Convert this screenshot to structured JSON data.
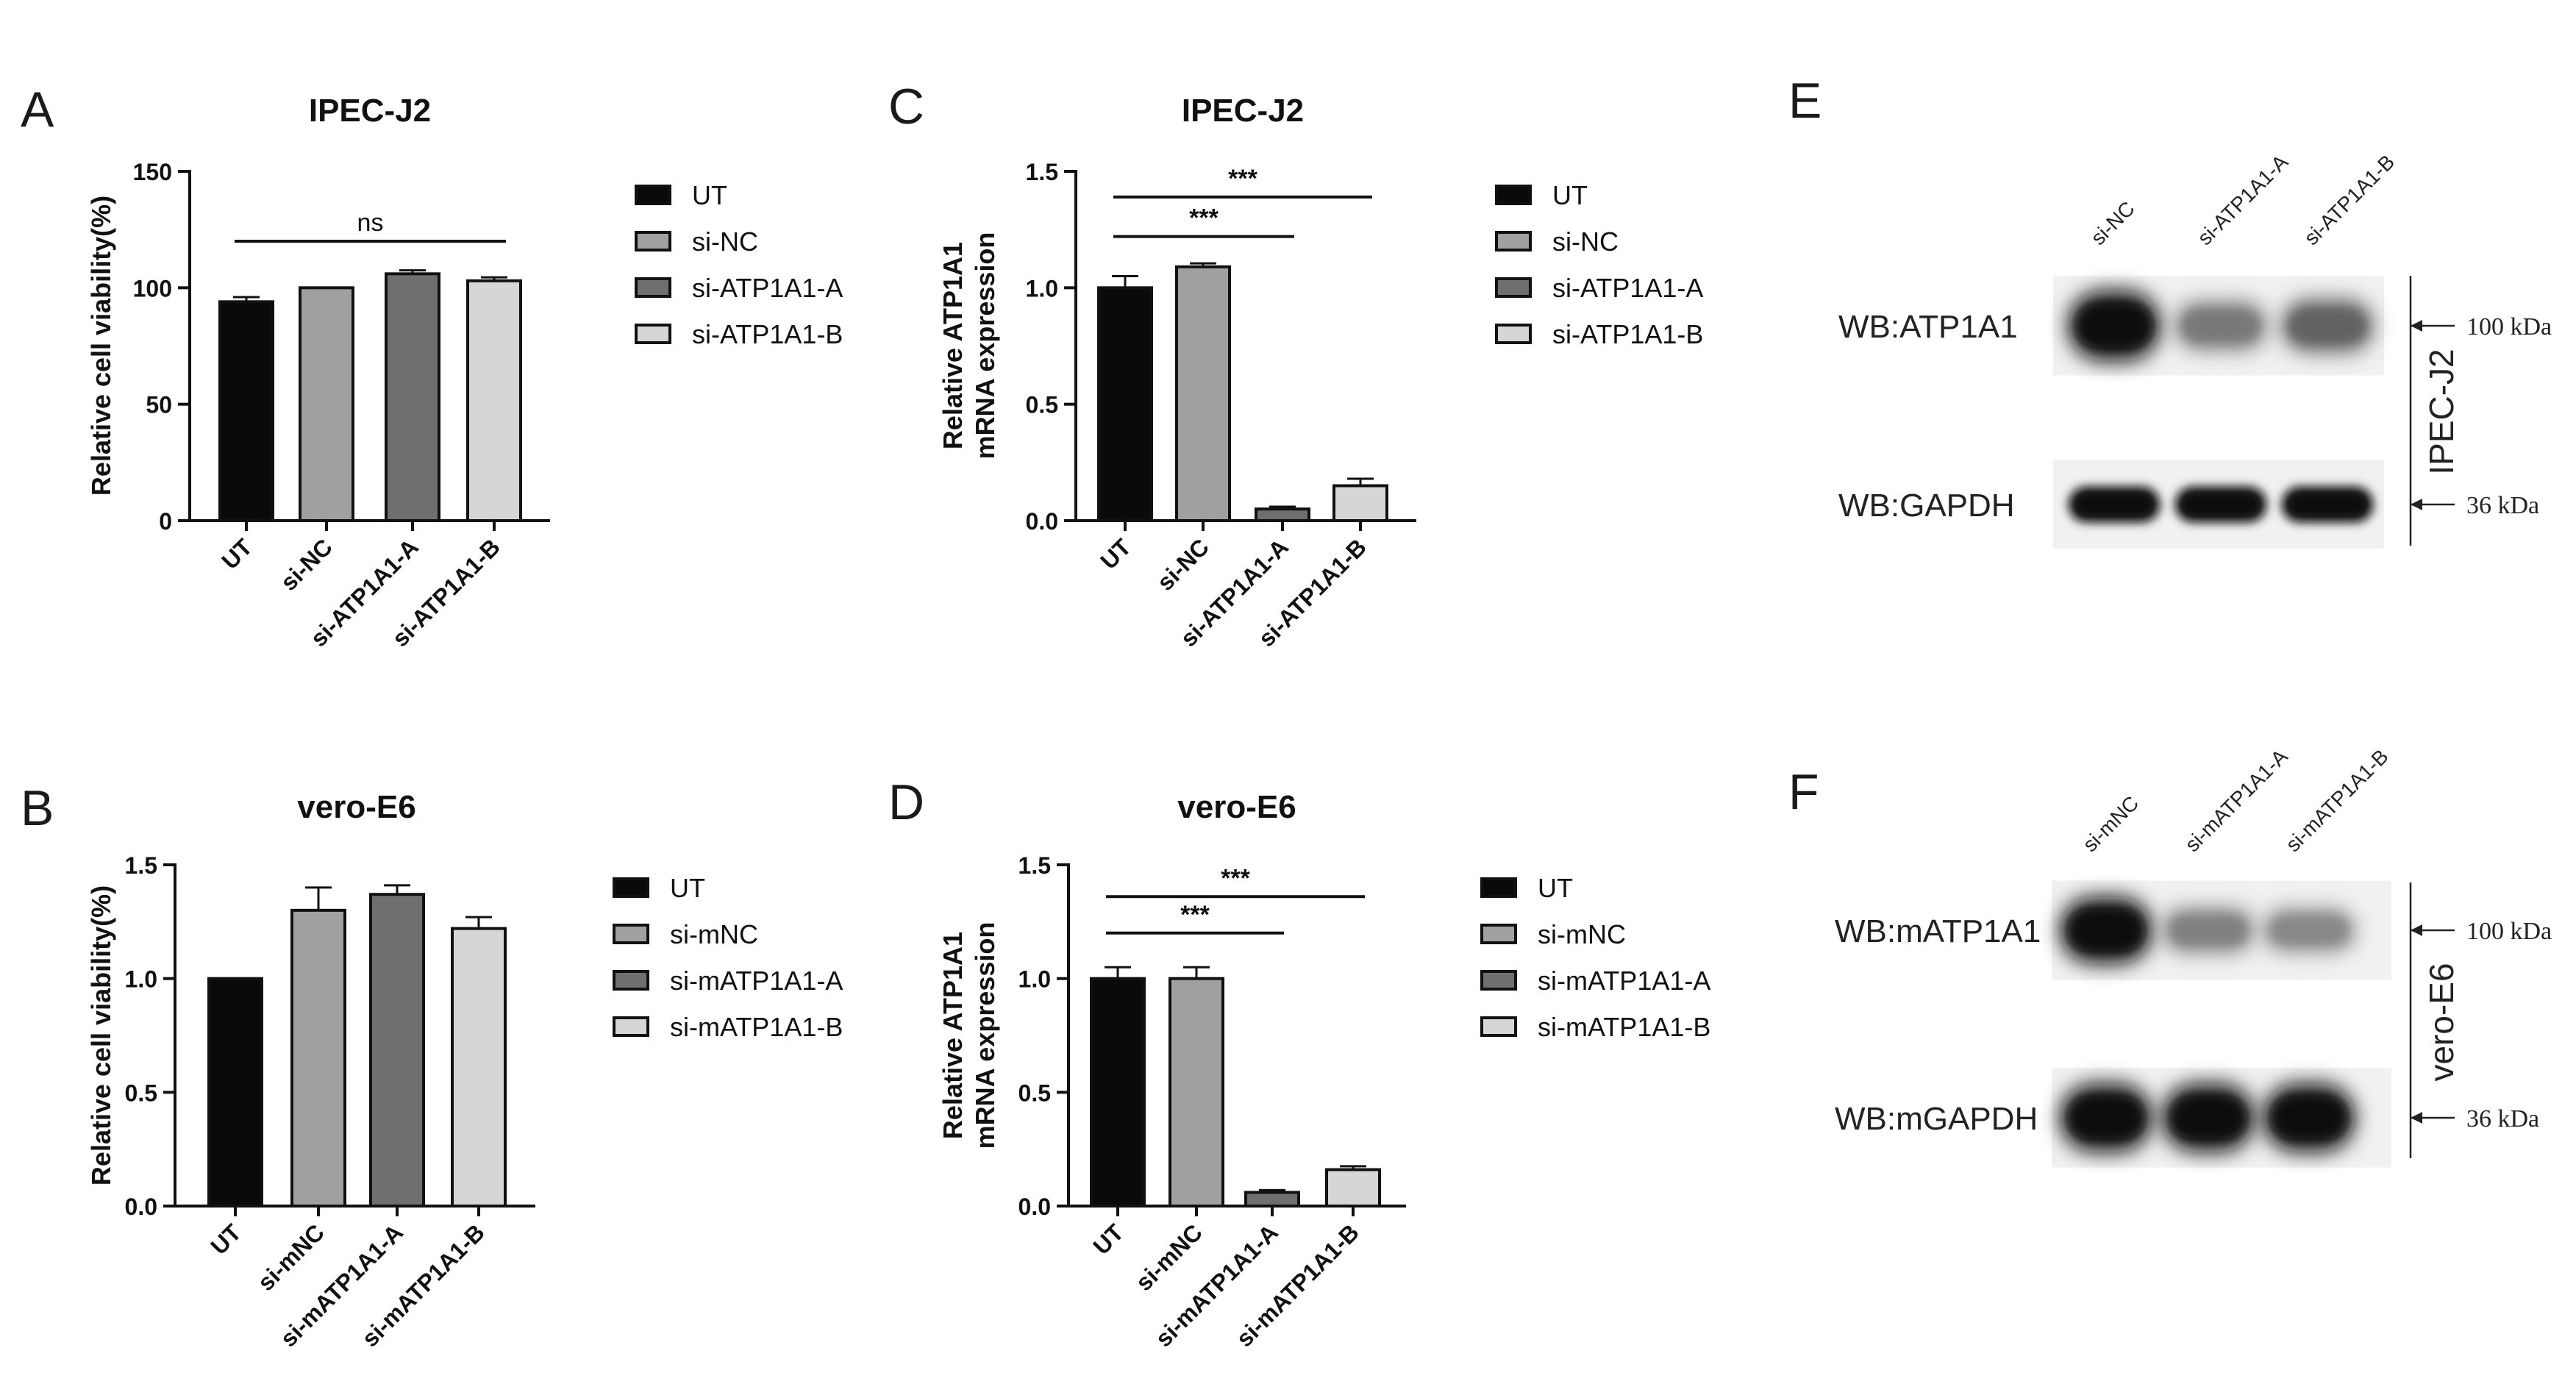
{
  "panels": [
    {
      "letter": "A"
    },
    {
      "letter": "B"
    },
    {
      "letter": "C"
    },
    {
      "letter": "D"
    },
    {
      "letter": "E"
    },
    {
      "letter": "F"
    }
  ],
  "chart_data": [
    {
      "id": "A",
      "type": "bar",
      "title": "IPEC-J2",
      "ylabel": "Relative cell viability(%)",
      "xlabel": "",
      "categories": [
        "UT",
        "si-NC",
        "si-ATP1A1-A",
        "si-ATP1A1-B"
      ],
      "values": [
        94,
        100,
        106,
        103
      ],
      "errors": [
        2,
        0,
        1.5,
        1.5
      ],
      "colors": [
        "#0a0a0a",
        "#a0a0a0",
        "#6f6f6f",
        "#d6d6d6"
      ],
      "ylim": [
        0,
        150
      ],
      "yticks": [
        0,
        50,
        100,
        150
      ],
      "ytick_labels": [
        "0",
        "50",
        "100",
        "150"
      ],
      "legend": [
        "UT",
        "si-NC",
        "si-ATP1A1-A",
        "si-ATP1A1-B"
      ],
      "legend_position": "right",
      "significance": [
        {
          "from": 0,
          "to": 3,
          "label": "ns",
          "level": 120
        }
      ]
    },
    {
      "id": "B",
      "type": "bar",
      "title": "vero-E6",
      "ylabel": "Relative cell viability(%)",
      "xlabel": "",
      "categories": [
        "UT",
        "si-mNC",
        "si-mATP1A1-A",
        "si-mATP1A1-B"
      ],
      "values": [
        1.0,
        1.3,
        1.37,
        1.22
      ],
      "errors": [
        0,
        0.1,
        0.04,
        0.05
      ],
      "colors": [
        "#0a0a0a",
        "#a0a0a0",
        "#6f6f6f",
        "#d6d6d6"
      ],
      "ylim": [
        0,
        1.5
      ],
      "yticks": [
        0,
        0.5,
        1.0,
        1.5
      ],
      "ytick_labels": [
        "0.0",
        "0.5",
        "1.0",
        "1.5"
      ],
      "legend": [
        "UT",
        "si-mNC",
        "si-mATP1A1-A",
        "si-mATP1A1-B"
      ],
      "legend_position": "right",
      "significance": []
    },
    {
      "id": "C",
      "type": "bar",
      "title": "IPEC-J2",
      "ylabel": "Relative ATP1A1 mRNA expression",
      "ylabel_lines": [
        "Relative ATP1A1",
        "mRNA expression"
      ],
      "xlabel": "",
      "categories": [
        "UT",
        "si-NC",
        "si-ATP1A1-A",
        "si-ATP1A1-B"
      ],
      "values": [
        1.0,
        1.09,
        0.05,
        0.15
      ],
      "errors": [
        0.05,
        0.015,
        0.01,
        0.03
      ],
      "colors": [
        "#0a0a0a",
        "#a0a0a0",
        "#6f6f6f",
        "#d6d6d6"
      ],
      "ylim": [
        0,
        1.5
      ],
      "yticks": [
        0,
        0.5,
        1.0,
        1.5
      ],
      "ytick_labels": [
        "0.0",
        "0.5",
        "1.0",
        "1.5"
      ],
      "legend": [
        "UT",
        "si-NC",
        "si-ATP1A1-A",
        "si-ATP1A1-B"
      ],
      "legend_position": "right",
      "significance": [
        {
          "from": 0,
          "to": 2,
          "label": "***",
          "level": 1.22
        },
        {
          "from": 0,
          "to": 3,
          "label": "***",
          "level": 1.39
        }
      ]
    },
    {
      "id": "D",
      "type": "bar",
      "title": "vero-E6",
      "ylabel": "Relative ATP1A1 mRNA expression",
      "ylabel_lines": [
        "Relative ATP1A1",
        "mRNA expression"
      ],
      "xlabel": "",
      "categories": [
        "UT",
        "si-mNC",
        "si-mATP1A1-A",
        "si-mATP1A1-B"
      ],
      "values": [
        1.0,
        1.0,
        0.06,
        0.16
      ],
      "errors": [
        0.05,
        0.05,
        0.01,
        0.015
      ],
      "colors": [
        "#0a0a0a",
        "#a0a0a0",
        "#6f6f6f",
        "#d6d6d6"
      ],
      "ylim": [
        0,
        1.5
      ],
      "yticks": [
        0,
        0.5,
        1.0,
        1.5
      ],
      "ytick_labels": [
        "0.0",
        "0.5",
        "1.0",
        "1.5"
      ],
      "legend": [
        "UT",
        "si-mNC",
        "si-mATP1A1-A",
        "si-mATP1A1-B"
      ],
      "legend_position": "right",
      "significance": [
        {
          "from": 0,
          "to": 2,
          "label": "***",
          "level": 1.2
        },
        {
          "from": 0,
          "to": 3,
          "label": "***",
          "level": 1.36
        }
      ]
    }
  ],
  "blots": [
    {
      "id": "E",
      "lanes": [
        "si-NC",
        "si-ATP1A1-A",
        "si-ATP1A1-B"
      ],
      "cell_line": "IPEC-J2",
      "rows": [
        {
          "label": "WB:ATP1A1",
          "marker": "100 kDa",
          "intensities": [
            1.0,
            0.3,
            0.45
          ]
        },
        {
          "label": "WB:GAPDH",
          "marker": "36 kDa",
          "intensities": [
            1.0,
            1.0,
            1.0
          ]
        }
      ]
    },
    {
      "id": "F",
      "lanes": [
        "si-mNC",
        "si-mATP1A1-A",
        "si-mATP1A1-B"
      ],
      "cell_line": "vero-E6",
      "rows": [
        {
          "label": "WB:mATP1A1",
          "marker": "100 kDa",
          "intensities": [
            1.0,
            0.25,
            0.2
          ]
        },
        {
          "label": "WB:mGAPDH",
          "marker": "36 kDa",
          "intensities": [
            1.0,
            1.0,
            1.0
          ]
        }
      ]
    }
  ]
}
